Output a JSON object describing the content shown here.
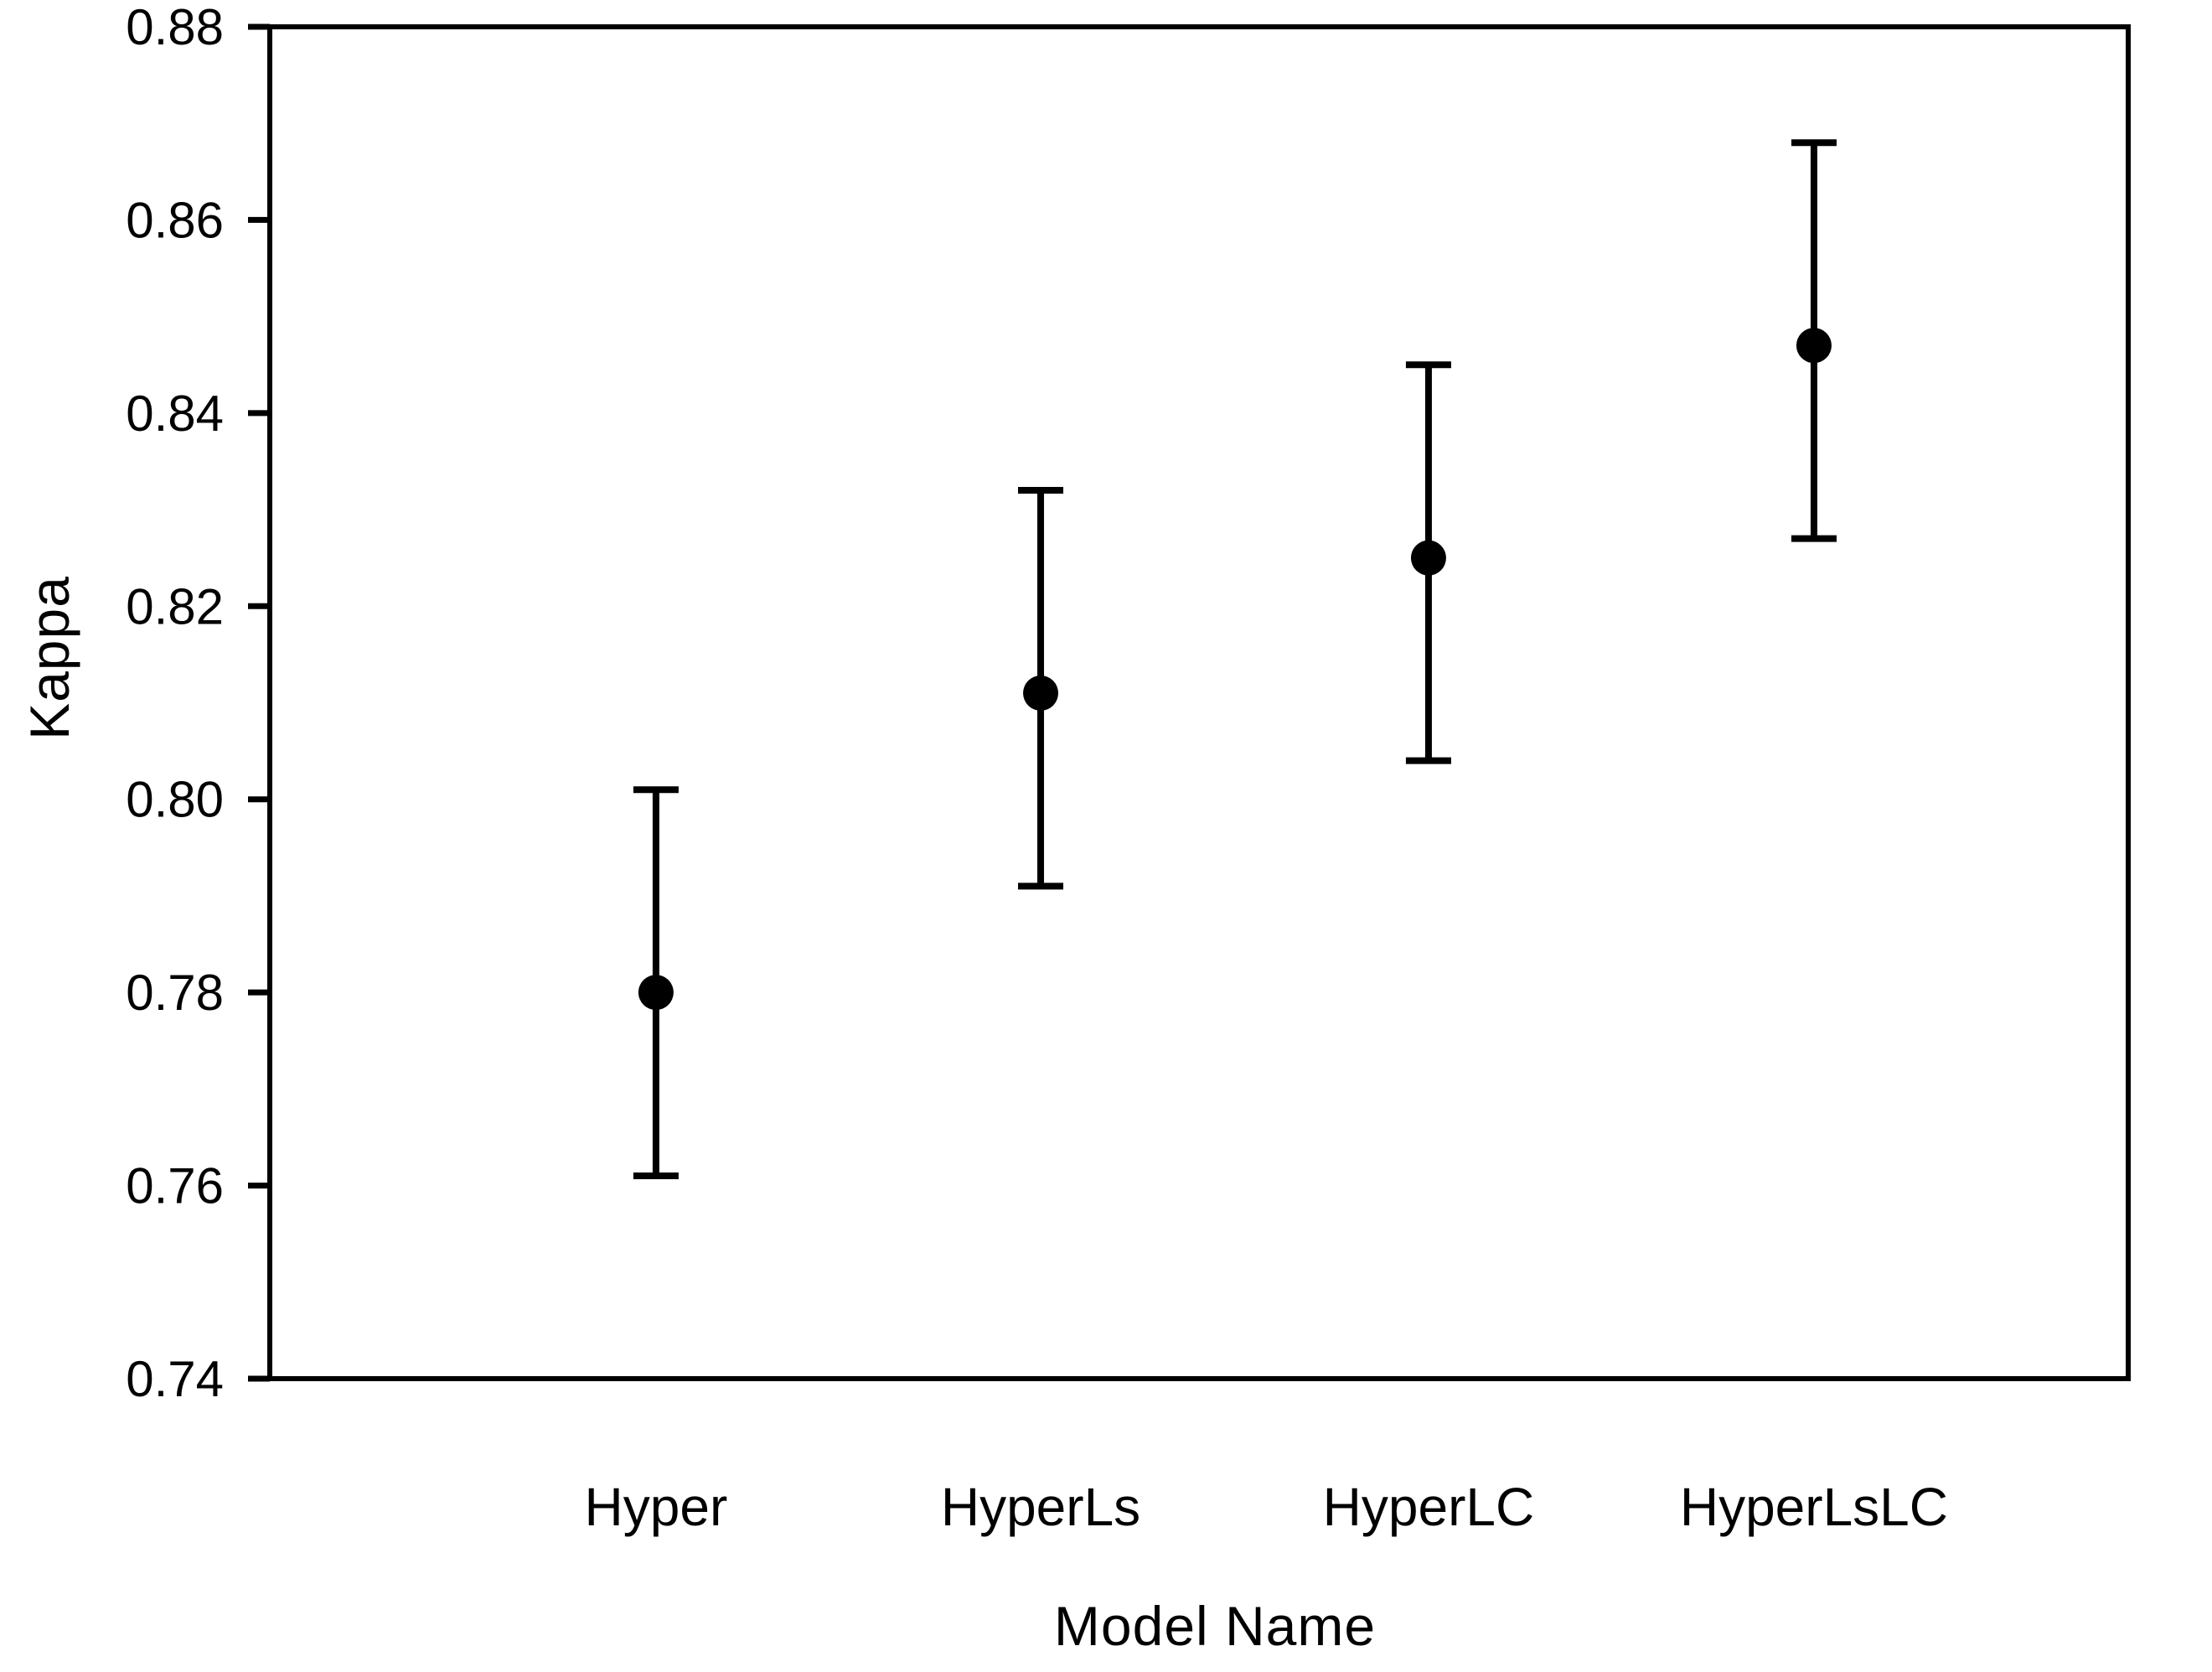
{
  "figure": {
    "background_color": "#ffffff",
    "ink_color": "#000000"
  },
  "chart_data": {
    "type": "scatter",
    "subtype": "point-with-error-bars",
    "title": "",
    "xlabel": "Model Name",
    "ylabel": "Kappa",
    "categories": [
      "Hyper",
      "HyperLs",
      "HyperLC",
      "HyperLsLC"
    ],
    "series": [
      {
        "name": "Kappa",
        "means": [
          0.78,
          0.811,
          0.825,
          0.847
        ],
        "error_low": [
          0.761,
          0.791,
          0.804,
          0.827
        ],
        "error_high": [
          0.801,
          0.832,
          0.845,
          0.868
        ]
      }
    ],
    "ylim": [
      0.74,
      0.88
    ],
    "yticks": [
      0.74,
      0.76,
      0.78,
      0.8,
      0.82,
      0.84,
      0.86,
      0.88
    ],
    "ytick_labels": [
      "0.74",
      "0.76",
      "0.78",
      "0.80",
      "0.82",
      "0.84",
      "0.86",
      "0.88"
    ],
    "grid": false,
    "legend": false,
    "frame": "full-box",
    "marker": "filled-circle",
    "error_bars": "vertical-with-caps"
  }
}
